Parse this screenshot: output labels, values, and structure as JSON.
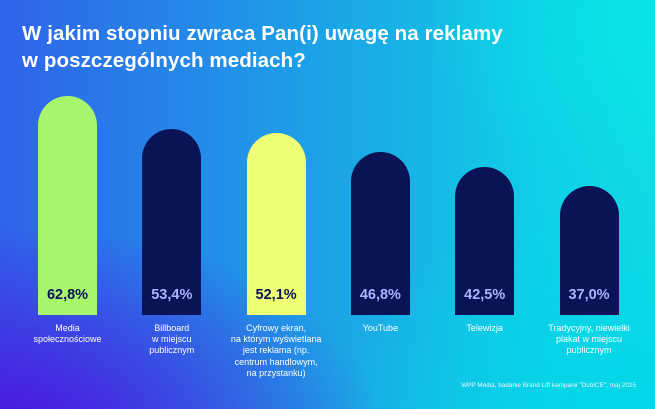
{
  "title": {
    "line1": "W jakim stopniu zwraca Pan(i) uwagę na reklamy",
    "line2": "w poszczególnych mediach?"
  },
  "source": "WPP Media, badanie Brand Lift kampanii \"DubICE\", maj 2025",
  "colors": {
    "background_start": "#2f63ea",
    "background_end": "#11dbe5",
    "bar_green": "#a6f56d",
    "bar_navy": "#0b1357",
    "bar_yellow": "#eeff76",
    "value_on_light": "#0b1357",
    "value_on_navy": "#a8b4ff",
    "title": "#ffffff"
  },
  "chart_data": {
    "type": "bar",
    "title": "W jakim stopniu zwraca Pan(i) uwagę na reklamy w poszczególnych mediach?",
    "xlabel": "",
    "ylabel": "",
    "ylim": [
      0,
      70
    ],
    "grid": false,
    "legend": "none",
    "unit": "%",
    "categories": [
      "Media\nspołecznościowe",
      "Billboard\nw miejscu\npublicznym",
      "Cyfrowy ekran,\nna którym wyświetlana\njest reklama (np.\ncentrum handlowym,\nna przystanku)",
      "YouTube",
      "Telewizja",
      "Tradycyjny, niewielki\nplakat w miejscu\npublicznym"
    ],
    "values": [
      62.8,
      53.4,
      52.1,
      46.8,
      42.5,
      37.0
    ],
    "value_labels": [
      "62,8%",
      "53,4%",
      "52,1%",
      "46,8%",
      "42,5%",
      "37,0%"
    ],
    "bar_colors": [
      "#a6f56d",
      "#0b1357",
      "#eeff76",
      "#0b1357",
      "#0b1357",
      "#0b1357"
    ],
    "value_label_colors": [
      "#0b1357",
      "#a8b4ff",
      "#0b1357",
      "#a8b4ff",
      "#a8b4ff",
      "#a8b4ff"
    ]
  }
}
